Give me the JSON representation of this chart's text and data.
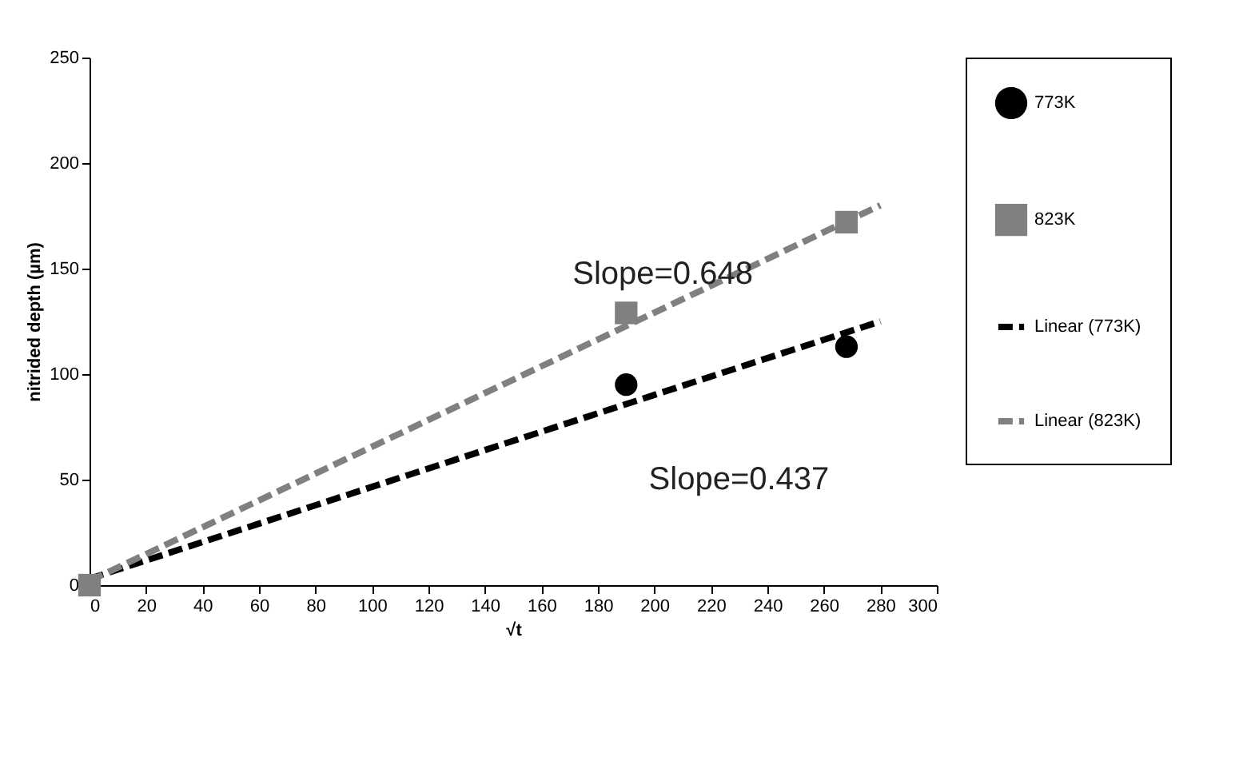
{
  "chart_data": {
    "type": "scatter",
    "xlabel": "√t",
    "ylabel": "nitrided depth (µm)",
    "xlim": [
      0,
      300
    ],
    "xticks": [
      0,
      20,
      40,
      60,
      80,
      100,
      120,
      140,
      160,
      180,
      200,
      220,
      240,
      260,
      280,
      300
    ],
    "ylim": [
      0,
      250
    ],
    "yticks": [
      0,
      50,
      100,
      150,
      200,
      250
    ],
    "grid": false,
    "legend": "right",
    "series": [
      {
        "name": "773K",
        "color": "#000000",
        "marker": "circle",
        "x": [
          190,
          268
        ],
        "values": [
          95,
          113
        ]
      },
      {
        "name": "823K",
        "color": "#808080",
        "marker": "square",
        "x": [
          0,
          190,
          268
        ],
        "values": [
          0,
          129,
          172
        ]
      },
      {
        "name": "Linear (773K)",
        "color": "#000000",
        "type": "line",
        "line_style": "dashed",
        "x": [
          0,
          280
        ],
        "values": [
          3,
          125
        ]
      },
      {
        "name": "Linear (823K)",
        "color": "#808080",
        "type": "line",
        "line_style": "dashed",
        "x": [
          0,
          280
        ],
        "values": [
          2,
          180
        ]
      }
    ],
    "annotations": [
      "Slope=0.648",
      "Slope=0.437"
    ]
  }
}
